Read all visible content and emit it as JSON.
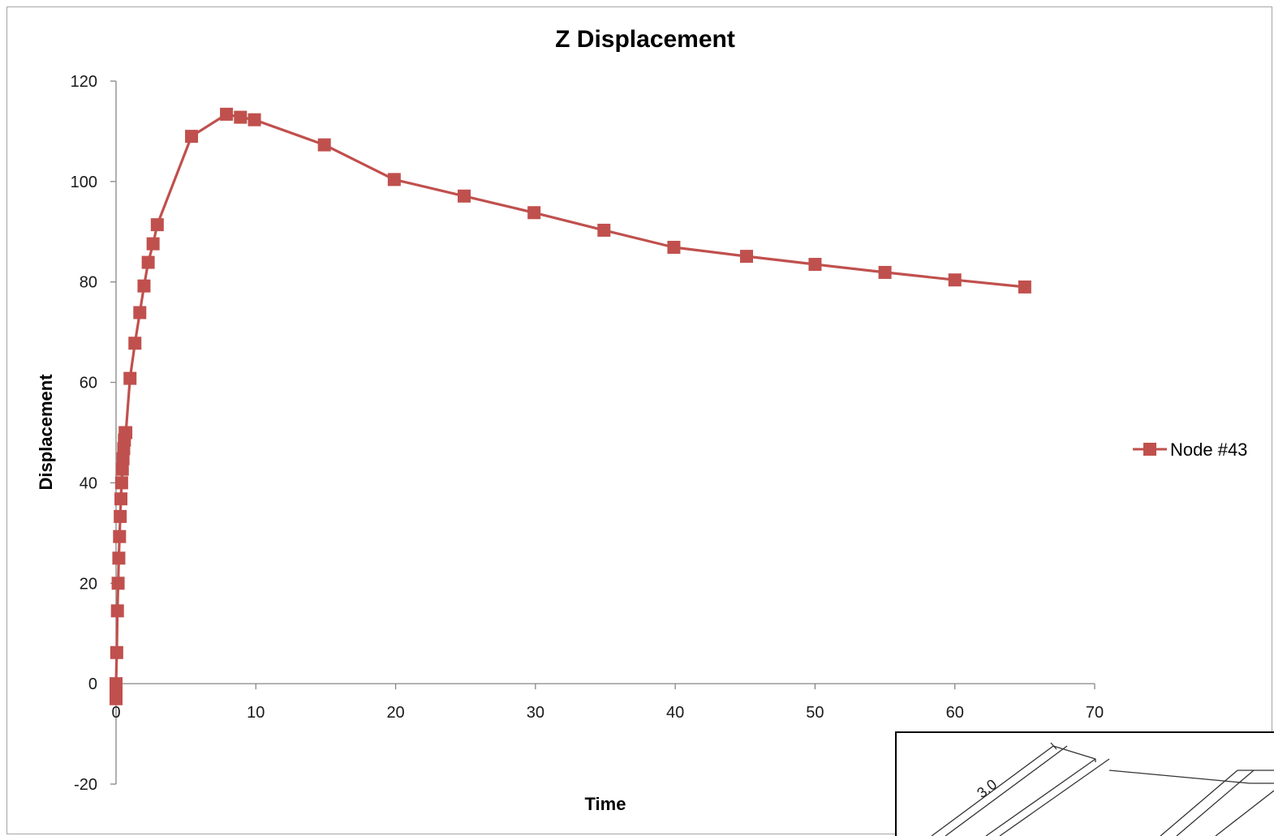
{
  "chart_data": {
    "type": "line",
    "title": "Z Displacement",
    "xlabel": "Time",
    "ylabel": "Displacement",
    "xlim": [
      0,
      70
    ],
    "ylim": [
      -20,
      120
    ],
    "x_ticks": [
      0,
      10,
      20,
      30,
      40,
      50,
      60,
      70
    ],
    "y_ticks": [
      -20,
      0,
      20,
      40,
      60,
      80,
      100,
      120
    ],
    "x_tick_labels": [
      "0",
      "10",
      "20",
      "30",
      "40",
      "50",
      "60",
      "70"
    ],
    "y_tick_labels": [
      "-20",
      "0",
      "20",
      "40",
      "60",
      "80",
      "100",
      "120"
    ],
    "grid": false,
    "legend_position": "right",
    "series": [
      {
        "name": "Node #43",
        "color": "#c0504d",
        "marker": "square",
        "x": [
          0,
          0,
          0,
          0,
          0.05,
          0.1,
          0.15,
          0.2,
          0.25,
          0.3,
          0.35,
          0.4,
          0.45,
          0.5,
          0.55,
          0.6,
          0.65,
          0.7,
          1.0,
          1.35,
          1.7,
          2.0,
          2.3,
          2.65,
          2.95,
          5.4,
          7.9,
          8.9,
          9.9,
          14.9,
          19.9,
          24.9,
          29.9,
          34.9,
          39.9,
          45.1,
          50.0,
          55.0,
          60.0,
          65.0
        ],
        "y": [
          -3,
          -2,
          -1,
          0,
          6.2,
          14.5,
          20,
          25,
          29.3,
          33.3,
          36.8,
          40,
          42.7,
          44.8,
          46.8,
          48.5,
          50,
          50,
          60.8,
          67.8,
          73.9,
          79.2,
          83.9,
          87.6,
          91.4,
          109,
          113.4,
          112.8,
          112.3,
          107.3,
          100.4,
          97.1,
          93.8,
          90.3,
          86.9,
          85.1,
          83.5,
          81.9,
          80.4,
          79
        ]
      }
    ]
  },
  "inset": {
    "dimension_label": "3.0"
  }
}
